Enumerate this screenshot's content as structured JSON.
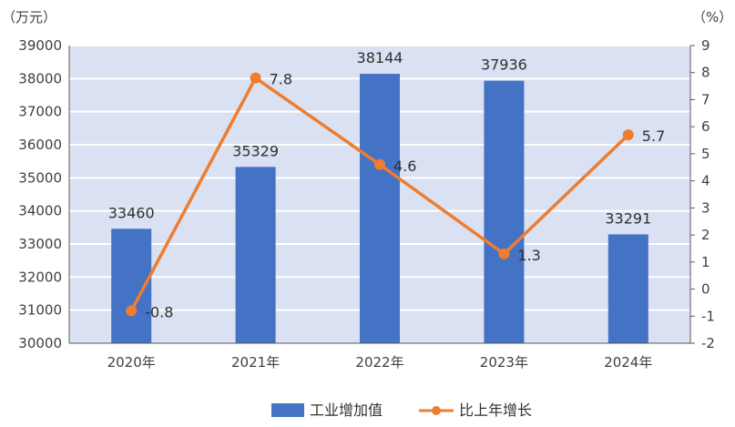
{
  "chart_data": {
    "type": "bar",
    "categories": [
      "2020年",
      "2021年",
      "2022年",
      "2023年",
      "2024年"
    ],
    "series": [
      {
        "name": "工业增加值",
        "kind": "bar",
        "axis": "left",
        "values": [
          33460,
          35329,
          38144,
          37936,
          33291
        ],
        "labels": [
          "33460",
          "35329",
          "38144",
          "37936",
          "33291"
        ]
      },
      {
        "name": "比上年增长",
        "kind": "line",
        "axis": "right",
        "values": [
          -0.8,
          7.8,
          4.6,
          1.3,
          5.7
        ],
        "labels": [
          "-0.8",
          "7.8",
          "4.6",
          "1.3",
          "5.7"
        ]
      }
    ],
    "y_left": {
      "unit": "（万元）",
      "ylim": [
        30000,
        39000
      ],
      "ticks": [
        "30000",
        "31000",
        "32000",
        "33000",
        "34000",
        "35000",
        "36000",
        "37000",
        "38000",
        "39000"
      ]
    },
    "y_right": {
      "unit": "（%）",
      "ylim": [
        -2,
        9
      ],
      "ticks": [
        "-2",
        "-1",
        "0",
        "1",
        "2",
        "3",
        "4",
        "5",
        "6",
        "7",
        "8",
        "9"
      ]
    },
    "grid": true,
    "legend_position": "bottom",
    "colors": {
      "bar": "#4472C4",
      "line": "#ED7D31",
      "plot_background": "#D9E1F2",
      "gridline": "#FFFFFF"
    }
  }
}
